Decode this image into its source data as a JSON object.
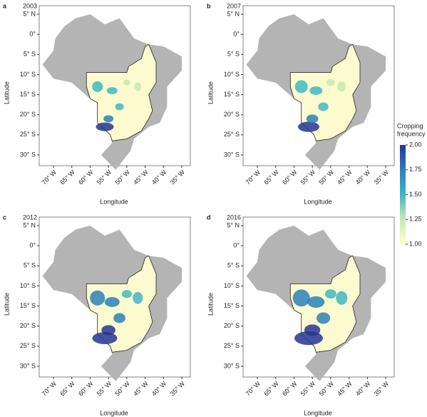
{
  "panels": [
    {
      "letter": "a",
      "year": "2003"
    },
    {
      "letter": "b",
      "year": "2007"
    },
    {
      "letter": "c",
      "year": "2012"
    },
    {
      "letter": "d",
      "year": "2016"
    }
  ],
  "lat_ticks": [
    {
      "value": 5,
      "label": "5° N"
    },
    {
      "value": 0,
      "label": "0°"
    },
    {
      "value": -5,
      "label": "5° S"
    },
    {
      "value": -10,
      "label": "10° S"
    },
    {
      "value": -15,
      "label": "15° S"
    },
    {
      "value": -20,
      "label": "20° S"
    },
    {
      "value": -25,
      "label": "25° S"
    },
    {
      "value": -30,
      "label": "30° S"
    }
  ],
  "lon_ticks": [
    {
      "value": -70,
      "label": "70° W"
    },
    {
      "value": -65,
      "label": "65° W"
    },
    {
      "value": -60,
      "label": "60° W"
    },
    {
      "value": -55,
      "label": "55° W"
    },
    {
      "value": -50,
      "label": "50° W"
    },
    {
      "value": -45,
      "label": "45° W"
    },
    {
      "value": -40,
      "label": "40° W"
    },
    {
      "value": -35,
      "label": "35° W"
    }
  ],
  "x_label": "Longitude",
  "y_label": "Latitude",
  "legend": {
    "title_lines": [
      "Cropping",
      "frequency"
    ],
    "range": [
      1,
      2
    ],
    "colors": [
      "#ffffcc",
      "#c7e9b4",
      "#41b6c4",
      "#2c7fb8",
      "#253494"
    ],
    "ticks": [
      {
        "value": 2,
        "label": "2.00"
      },
      {
        "value": 1.75,
        "label": "1.75"
      },
      {
        "value": 1.5,
        "label": "1.50"
      },
      {
        "value": 1.25,
        "label": "1.25"
      },
      {
        "value": 1,
        "label": "1.00"
      }
    ]
  }
}
